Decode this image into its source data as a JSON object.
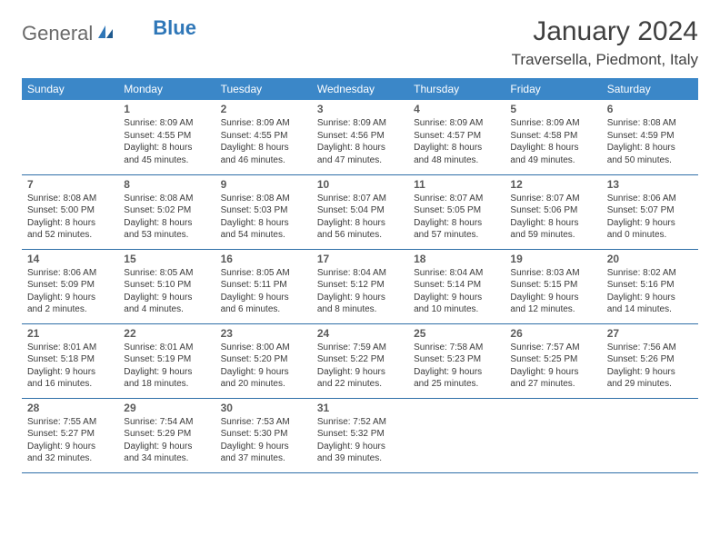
{
  "brand": {
    "part1": "General",
    "part2": "Blue"
  },
  "title": "January 2024",
  "location": "Traversella, Piedmont, Italy",
  "colors": {
    "header_bg": "#3b87c8",
    "header_text": "#ffffff",
    "rule": "#2f6fa8",
    "brand_gray": "#6a6a6a",
    "brand_blue": "#2f77b8",
    "text": "#333333"
  },
  "day_names": [
    "Sunday",
    "Monday",
    "Tuesday",
    "Wednesday",
    "Thursday",
    "Friday",
    "Saturday"
  ],
  "grid": [
    [
      null,
      {
        "n": "1",
        "sr": "8:09 AM",
        "ss": "4:55 PM",
        "dl": "8 hours and 45 minutes."
      },
      {
        "n": "2",
        "sr": "8:09 AM",
        "ss": "4:55 PM",
        "dl": "8 hours and 46 minutes."
      },
      {
        "n": "3",
        "sr": "8:09 AM",
        "ss": "4:56 PM",
        "dl": "8 hours and 47 minutes."
      },
      {
        "n": "4",
        "sr": "8:09 AM",
        "ss": "4:57 PM",
        "dl": "8 hours and 48 minutes."
      },
      {
        "n": "5",
        "sr": "8:09 AM",
        "ss": "4:58 PM",
        "dl": "8 hours and 49 minutes."
      },
      {
        "n": "6",
        "sr": "8:08 AM",
        "ss": "4:59 PM",
        "dl": "8 hours and 50 minutes."
      }
    ],
    [
      {
        "n": "7",
        "sr": "8:08 AM",
        "ss": "5:00 PM",
        "dl": "8 hours and 52 minutes."
      },
      {
        "n": "8",
        "sr": "8:08 AM",
        "ss": "5:02 PM",
        "dl": "8 hours and 53 minutes."
      },
      {
        "n": "9",
        "sr": "8:08 AM",
        "ss": "5:03 PM",
        "dl": "8 hours and 54 minutes."
      },
      {
        "n": "10",
        "sr": "8:07 AM",
        "ss": "5:04 PM",
        "dl": "8 hours and 56 minutes."
      },
      {
        "n": "11",
        "sr": "8:07 AM",
        "ss": "5:05 PM",
        "dl": "8 hours and 57 minutes."
      },
      {
        "n": "12",
        "sr": "8:07 AM",
        "ss": "5:06 PM",
        "dl": "8 hours and 59 minutes."
      },
      {
        "n": "13",
        "sr": "8:06 AM",
        "ss": "5:07 PM",
        "dl": "9 hours and 0 minutes."
      }
    ],
    [
      {
        "n": "14",
        "sr": "8:06 AM",
        "ss": "5:09 PM",
        "dl": "9 hours and 2 minutes."
      },
      {
        "n": "15",
        "sr": "8:05 AM",
        "ss": "5:10 PM",
        "dl": "9 hours and 4 minutes."
      },
      {
        "n": "16",
        "sr": "8:05 AM",
        "ss": "5:11 PM",
        "dl": "9 hours and 6 minutes."
      },
      {
        "n": "17",
        "sr": "8:04 AM",
        "ss": "5:12 PM",
        "dl": "9 hours and 8 minutes."
      },
      {
        "n": "18",
        "sr": "8:04 AM",
        "ss": "5:14 PM",
        "dl": "9 hours and 10 minutes."
      },
      {
        "n": "19",
        "sr": "8:03 AM",
        "ss": "5:15 PM",
        "dl": "9 hours and 12 minutes."
      },
      {
        "n": "20",
        "sr": "8:02 AM",
        "ss": "5:16 PM",
        "dl": "9 hours and 14 minutes."
      }
    ],
    [
      {
        "n": "21",
        "sr": "8:01 AM",
        "ss": "5:18 PM",
        "dl": "9 hours and 16 minutes."
      },
      {
        "n": "22",
        "sr": "8:01 AM",
        "ss": "5:19 PM",
        "dl": "9 hours and 18 minutes."
      },
      {
        "n": "23",
        "sr": "8:00 AM",
        "ss": "5:20 PM",
        "dl": "9 hours and 20 minutes."
      },
      {
        "n": "24",
        "sr": "7:59 AM",
        "ss": "5:22 PM",
        "dl": "9 hours and 22 minutes."
      },
      {
        "n": "25",
        "sr": "7:58 AM",
        "ss": "5:23 PM",
        "dl": "9 hours and 25 minutes."
      },
      {
        "n": "26",
        "sr": "7:57 AM",
        "ss": "5:25 PM",
        "dl": "9 hours and 27 minutes."
      },
      {
        "n": "27",
        "sr": "7:56 AM",
        "ss": "5:26 PM",
        "dl": "9 hours and 29 minutes."
      }
    ],
    [
      {
        "n": "28",
        "sr": "7:55 AM",
        "ss": "5:27 PM",
        "dl": "9 hours and 32 minutes."
      },
      {
        "n": "29",
        "sr": "7:54 AM",
        "ss": "5:29 PM",
        "dl": "9 hours and 34 minutes."
      },
      {
        "n": "30",
        "sr": "7:53 AM",
        "ss": "5:30 PM",
        "dl": "9 hours and 37 minutes."
      },
      {
        "n": "31",
        "sr": "7:52 AM",
        "ss": "5:32 PM",
        "dl": "9 hours and 39 minutes."
      },
      null,
      null,
      null
    ]
  ],
  "labels": {
    "sunrise": "Sunrise:",
    "sunset": "Sunset:",
    "daylight": "Daylight:"
  }
}
